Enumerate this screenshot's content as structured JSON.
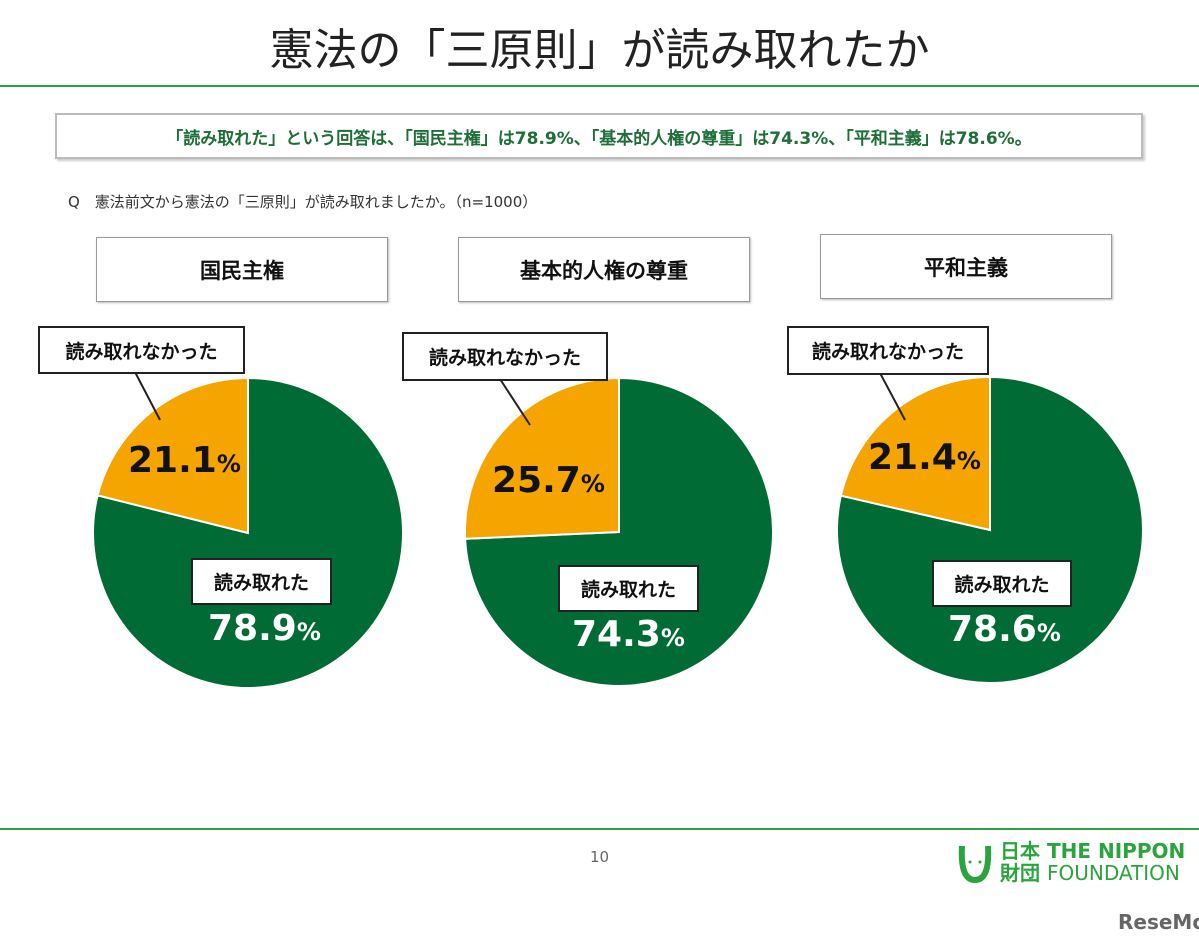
{
  "title": "憲法の「三原則」が読み取れたか",
  "summary": "「読み取れた」という回答は、「国民主権」は78.9%、「基本的人権の尊重」は74.3%、「平和主義」は78.6%。",
  "question": "Q　憲法前文から憲法の「三原則」が読み取れましたか。（n=1000）",
  "page_number": "10",
  "logo": {
    "jp1": "日本",
    "jp2": "財団",
    "en1": "THE NIPPON",
    "en2": "FOUNDATION"
  },
  "watermark": "ReseMom",
  "colors": {
    "yes": "#006b35",
    "no": "#f5a400"
  },
  "chart_data": [
    {
      "type": "pie",
      "title": "国民主権",
      "labels": [
        "読み取れた",
        "読み取れなかった"
      ],
      "values": [
        78.9,
        21.1
      ],
      "value_labels": [
        "78.9",
        "21.1"
      ],
      "unit": "%"
    },
    {
      "type": "pie",
      "title": "基本的人権の尊重",
      "labels": [
        "読み取れた",
        "読み取れなかった"
      ],
      "values": [
        74.3,
        25.7
      ],
      "value_labels": [
        "74.3",
        "25.7"
      ],
      "unit": "%"
    },
    {
      "type": "pie",
      "title": "平和主義",
      "labels": [
        "読み取れた",
        "読み取れなかった"
      ],
      "values": [
        78.6,
        21.4
      ],
      "value_labels": [
        "78.6",
        "21.4"
      ],
      "unit": "%"
    }
  ]
}
